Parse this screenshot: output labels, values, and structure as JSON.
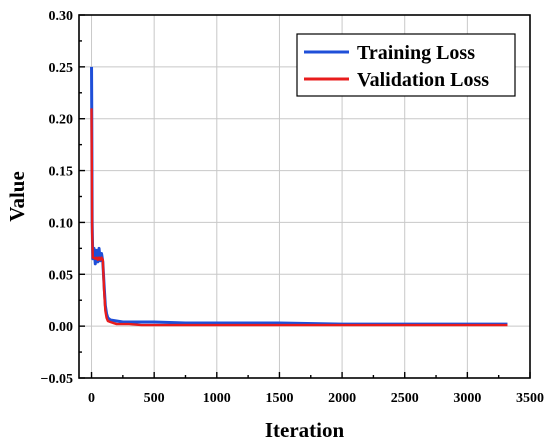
{
  "chart_data": {
    "type": "line",
    "xlabel": "Iteration",
    "ylabel": "Value",
    "xlim": [
      -100,
      3500
    ],
    "ylim": [
      -0.05,
      0.3
    ],
    "xticks": [
      0,
      500,
      1000,
      1500,
      2000,
      2500,
      3000,
      3500
    ],
    "yticks": [
      -0.05,
      0.0,
      0.05,
      0.1,
      0.15,
      0.2,
      0.25,
      0.3
    ],
    "xtick_labels": [
      "0",
      "500",
      "1000",
      "1500",
      "2000",
      "2500",
      "3000",
      "3500"
    ],
    "ytick_labels": [
      "−0.05",
      "0.00",
      "0.05",
      "0.10",
      "0.15",
      "0.20",
      "0.25",
      "0.30"
    ],
    "grid": true,
    "legend_position": "top-right",
    "series": [
      {
        "name": "Training Loss",
        "color": "#1f4fd8",
        "x": [
          0,
          2,
          5,
          10,
          20,
          30,
          40,
          50,
          60,
          70,
          80,
          90,
          100,
          110,
          120,
          130,
          150,
          200,
          250,
          300,
          400,
          500,
          750,
          1000,
          1500,
          2000,
          2500,
          3000,
          3320
        ],
        "y": [
          0.25,
          0.2,
          0.1,
          0.065,
          0.075,
          0.06,
          0.073,
          0.062,
          0.075,
          0.063,
          0.07,
          0.062,
          0.04,
          0.02,
          0.012,
          0.008,
          0.006,
          0.005,
          0.004,
          0.004,
          0.004,
          0.004,
          0.003,
          0.003,
          0.003,
          0.002,
          0.002,
          0.002,
          0.002
        ]
      },
      {
        "name": "Validation Loss",
        "color": "#e81c1c",
        "x": [
          0,
          2,
          5,
          10,
          20,
          30,
          40,
          50,
          60,
          70,
          80,
          90,
          100,
          110,
          120,
          130,
          150,
          200,
          250,
          300,
          400,
          500,
          750,
          1000,
          1500,
          2000,
          2500,
          3000,
          3320
        ],
        "y": [
          0.21,
          0.16,
          0.09,
          0.066,
          0.066,
          0.065,
          0.066,
          0.064,
          0.066,
          0.064,
          0.066,
          0.064,
          0.035,
          0.015,
          0.008,
          0.005,
          0.004,
          0.002,
          0.002,
          0.002,
          0.001,
          0.001,
          0.001,
          0.001,
          0.001,
          0.001,
          0.001,
          0.001,
          0.001
        ]
      }
    ]
  }
}
